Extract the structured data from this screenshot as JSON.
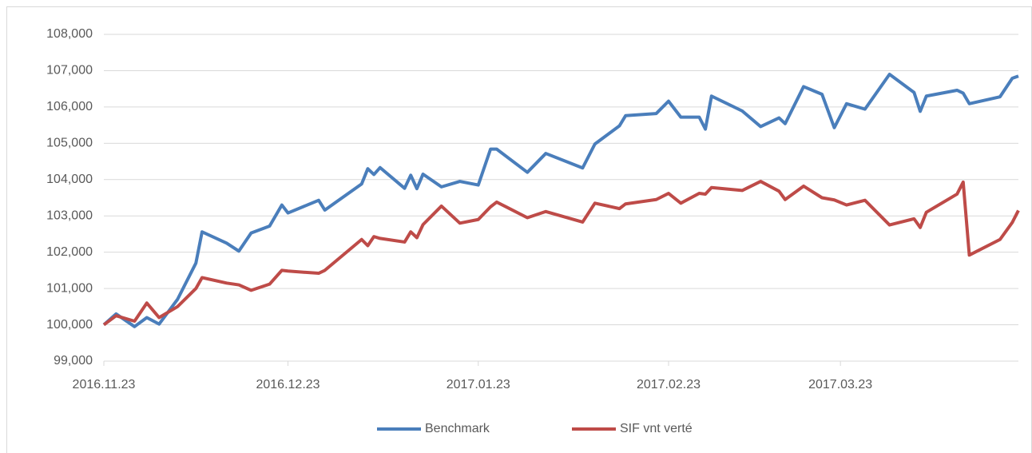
{
  "chart_data": {
    "type": "line",
    "x": [
      "2016.11.23",
      "2016.11.25",
      "2016.11.28",
      "2016.11.30",
      "2016.12.02",
      "2016.12.05",
      "2016.12.08",
      "2016.12.09",
      "2016.12.13",
      "2016.12.15",
      "2016.12.17",
      "2016.12.20",
      "2016.12.22",
      "2016.12.23",
      "2016.12.28",
      "2016.12.29",
      "2017.01.04",
      "2017.01.05",
      "2017.01.06",
      "2017.01.07",
      "2017.01.11",
      "2017.01.12",
      "2017.01.13",
      "2017.01.14",
      "2017.01.17",
      "2017.01.20",
      "2017.01.23",
      "2017.01.25",
      "2017.01.26",
      "2017.01.31",
      "2017.02.03",
      "2017.02.09",
      "2017.02.11",
      "2017.02.15",
      "2017.02.16",
      "2017.02.21",
      "2017.02.23",
      "2017.02.25",
      "2017.02.28",
      "2017.03.01",
      "2017.03.02",
      "2017.03.07",
      "2017.03.10",
      "2017.03.13",
      "2017.03.14",
      "2017.03.17",
      "2017.03.20",
      "2017.03.22",
      "2017.03.24",
      "2017.03.27",
      "2017.03.31",
      "2017.04.04",
      "2017.04.05",
      "2017.04.06",
      "2017.04.11",
      "2017.04.12",
      "2017.04.13",
      "2017.04.18",
      "2017.04.20",
      "2017.04.21"
    ],
    "series": [
      {
        "name": "Benchmark",
        "color": "#4a7ebb",
        "values": [
          100000,
          100300,
          99950,
          100200,
          100020,
          100700,
          101700,
          102560,
          102250,
          102030,
          102530,
          102720,
          103300,
          103080,
          103430,
          103160,
          103880,
          104300,
          104140,
          104330,
          103760,
          104120,
          103750,
          104150,
          103800,
          103950,
          103850,
          104840,
          104840,
          104200,
          104720,
          104320,
          104980,
          105480,
          105760,
          105820,
          106160,
          105720,
          105720,
          105390,
          106300,
          105890,
          105460,
          105700,
          105540,
          106560,
          106350,
          105430,
          106090,
          105940,
          106900,
          106400,
          105880,
          106300,
          106460,
          106380,
          106090,
          106280,
          106790,
          106850
        ]
      },
      {
        "name": "SIF vnt verté",
        "color": "#be4b48",
        "values": [
          100000,
          100250,
          100100,
          100600,
          100200,
          100500,
          101000,
          101300,
          101150,
          101100,
          100950,
          101120,
          101500,
          101480,
          101420,
          101500,
          102350,
          102180,
          102430,
          102380,
          102280,
          102560,
          102400,
          102760,
          103270,
          102800,
          102900,
          103250,
          103380,
          102950,
          103120,
          102830,
          103350,
          103200,
          103330,
          103450,
          103620,
          103350,
          103620,
          103600,
          103780,
          103700,
          103950,
          103680,
          103450,
          103820,
          103500,
          103440,
          103300,
          103430,
          102750,
          102920,
          102680,
          103100,
          103600,
          103930,
          101920,
          102350,
          102820,
          103150
        ]
      }
    ],
    "xlim": [
      "2016.11.23",
      "2017.04.21"
    ],
    "xticks": [
      "2016.11.23",
      "2016.12.23",
      "2017.01.23",
      "2017.02.23",
      "2017.03.23"
    ],
    "ylim": [
      99000,
      108000
    ],
    "yticks": [
      {
        "value": 99000,
        "label": "99,000"
      },
      {
        "value": 100000,
        "label": "100,000"
      },
      {
        "value": 101000,
        "label": "101,000"
      },
      {
        "value": 102000,
        "label": "102,000"
      },
      {
        "value": 103000,
        "label": "103,000"
      },
      {
        "value": 104000,
        "label": "104,000"
      },
      {
        "value": 105000,
        "label": "105,000"
      },
      {
        "value": 106000,
        "label": "106,000"
      },
      {
        "value": 107000,
        "label": "107,000"
      },
      {
        "value": 108000,
        "label": "108,000"
      }
    ],
    "grid": true,
    "legend": "bottom"
  }
}
